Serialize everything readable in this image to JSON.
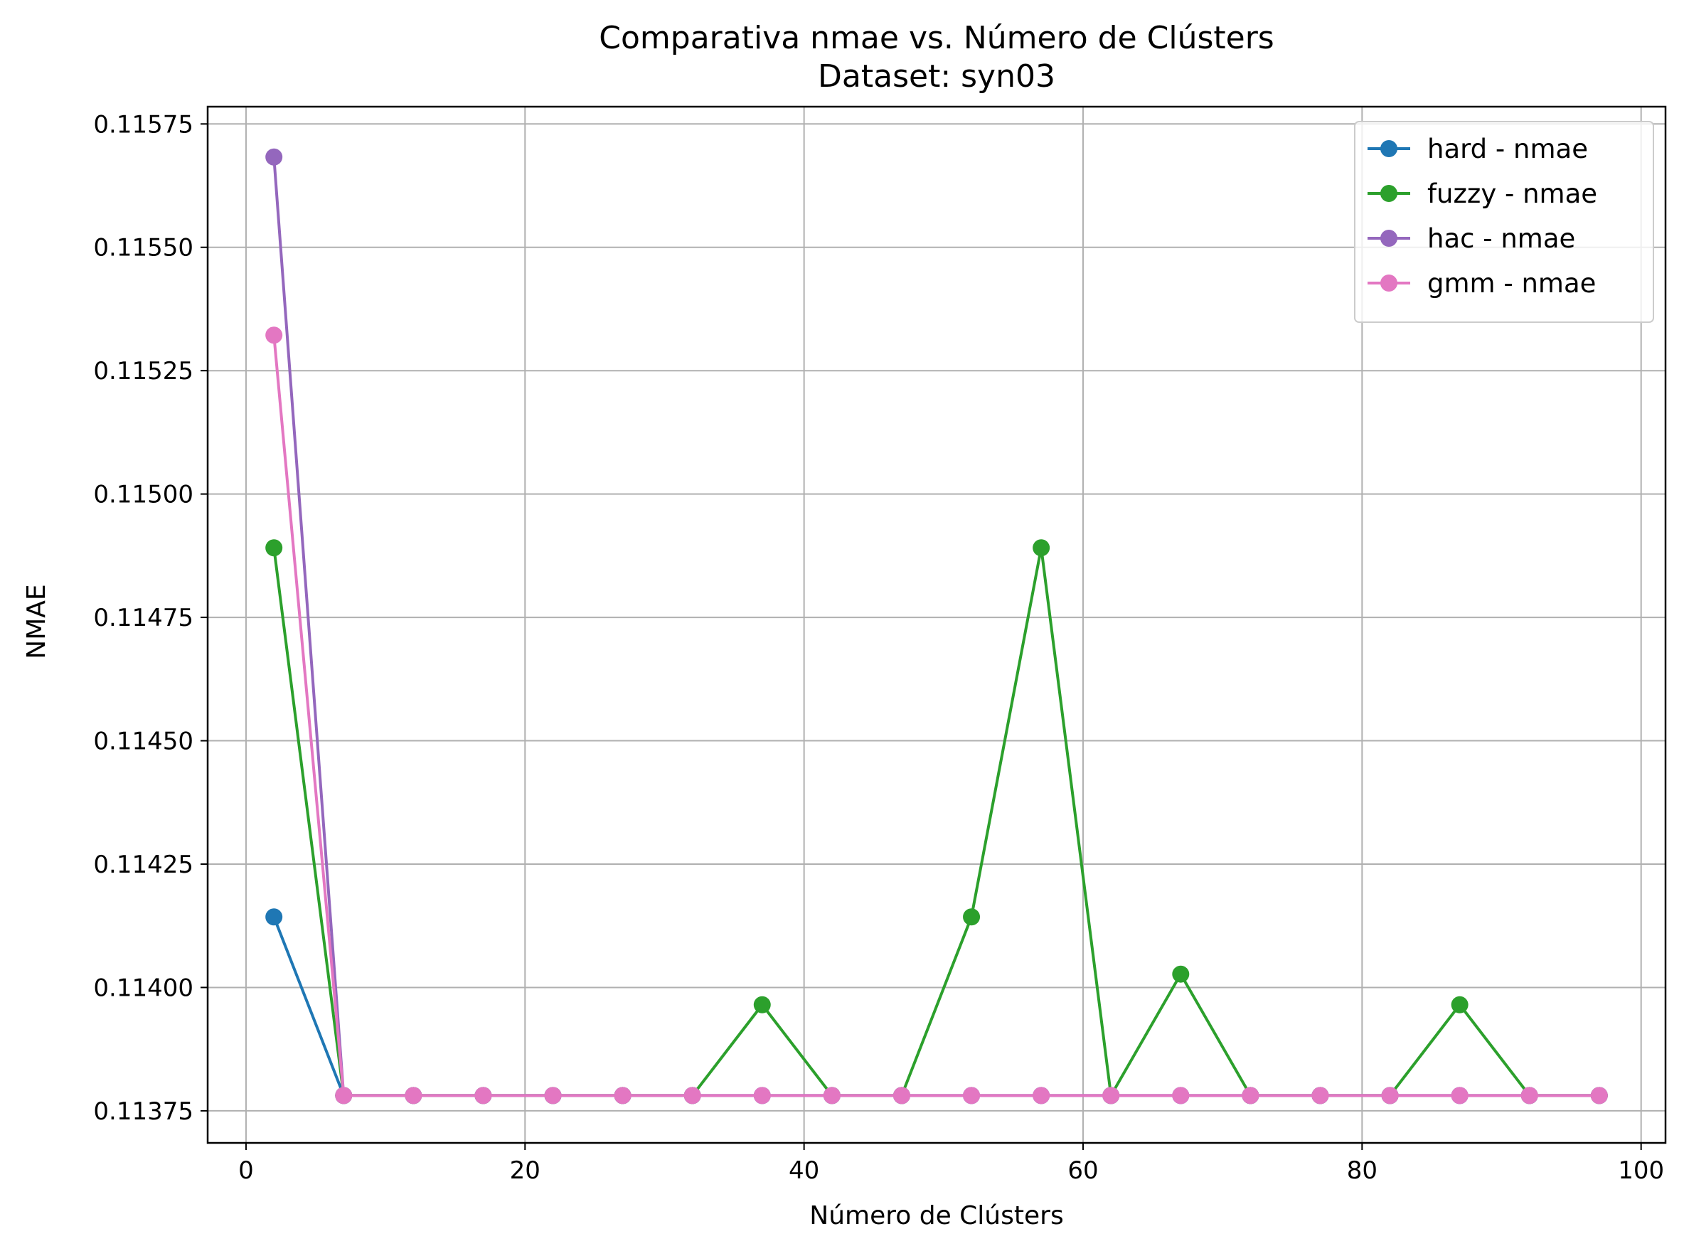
{
  "chart_data": {
    "type": "line",
    "title": "Comparativa nmae vs. Número de Clústers",
    "subtitle": "Dataset: syn03",
    "xlabel": "Número de Clústers",
    "ylabel": "NMAE",
    "xlim": [
      -2.75,
      101.75
    ],
    "ylim": [
      0.113685,
      0.115785
    ],
    "xticks": [
      0,
      20,
      40,
      60,
      80,
      100
    ],
    "xtick_labels": [
      "0",
      "20",
      "40",
      "60",
      "80",
      "100"
    ],
    "yticks": [
      0.11375,
      0.114,
      0.11425,
      0.1145,
      0.11475,
      0.115,
      0.11525,
      0.1155,
      0.11575
    ],
    "ytick_labels": [
      "0.11375",
      "0.11400",
      "0.11425",
      "0.11450",
      "0.11475",
      "0.11500",
      "0.11525",
      "0.11550",
      "0.11575"
    ],
    "grid": true,
    "legend_position": "top-right",
    "x": [
      2,
      7,
      12,
      17,
      22,
      27,
      32,
      37,
      42,
      47,
      52,
      57,
      62,
      67,
      72,
      77,
      82,
      87,
      92,
      97
    ],
    "series": [
      {
        "name": "hard - nmae",
        "color": "#1f77b4",
        "values": [
          0.114143,
          0.113781,
          0.113781,
          0.113781,
          0.113781,
          0.113781,
          0.113781,
          0.113781,
          0.113781,
          0.113781,
          0.113781,
          0.113781,
          0.113781,
          0.113781,
          0.113781,
          0.113781,
          0.113781,
          0.113781,
          0.113781,
          0.113781
        ]
      },
      {
        "name": "fuzzy - nmae",
        "color": "#2ca02c",
        "values": [
          0.114891,
          0.113781,
          0.113781,
          0.113781,
          0.113781,
          0.113781,
          0.113781,
          0.113965,
          0.113781,
          0.113781,
          0.114143,
          0.114891,
          0.113781,
          0.114027,
          0.113781,
          0.113781,
          0.113781,
          0.113965,
          0.113781,
          0.113781
        ]
      },
      {
        "name": "hac - nmae",
        "color": "#9467bd",
        "values": [
          0.115683,
          0.113781,
          0.113781,
          0.113781,
          0.113781,
          0.113781,
          0.113781,
          0.113781,
          0.113781,
          0.113781,
          0.113781,
          0.113781,
          0.113781,
          0.113781,
          0.113781,
          0.113781,
          0.113781,
          0.113781,
          0.113781,
          0.113781
        ]
      },
      {
        "name": "gmm - nmae",
        "color": "#e377c2",
        "values": [
          0.115322,
          0.113781,
          0.113781,
          0.113781,
          0.113781,
          0.113781,
          0.113781,
          0.113781,
          0.113781,
          0.113781,
          0.113781,
          0.113781,
          0.113781,
          0.113781,
          0.113781,
          0.113781,
          0.113781,
          0.113781,
          0.113781,
          0.113781
        ]
      }
    ]
  }
}
